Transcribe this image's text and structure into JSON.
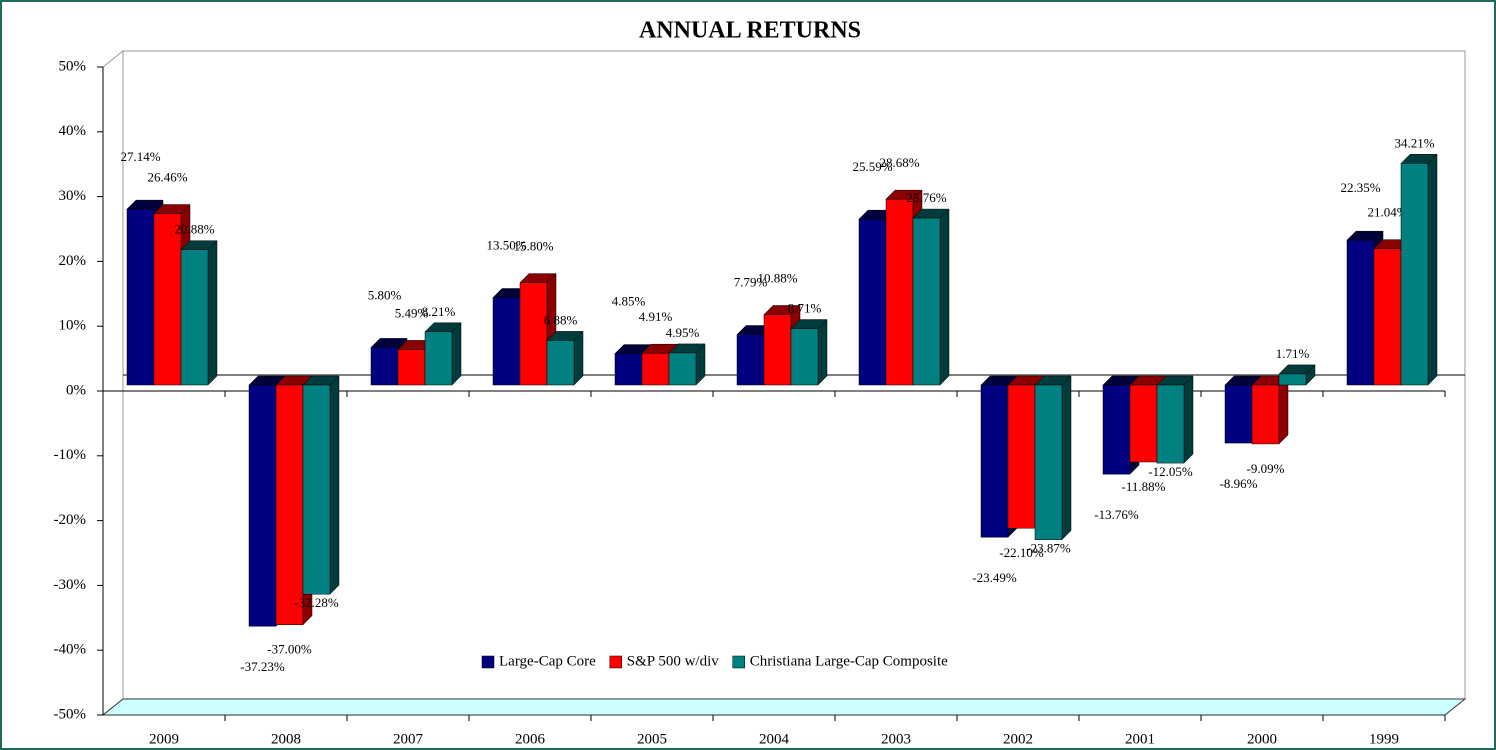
{
  "chart_data": {
    "type": "bar3d",
    "title": "ANNUAL RETURNS",
    "categories": [
      "2009",
      "2008",
      "2007",
      "2006",
      "2005",
      "2004",
      "2003",
      "2002",
      "2001",
      "2000",
      "1999"
    ],
    "series": [
      {
        "name": "Large-Cap Core",
        "color": "#000080",
        "side": "#00003a",
        "values": [
          27.14,
          -37.23,
          5.8,
          13.5,
          4.85,
          7.79,
          25.59,
          -23.49,
          -13.76,
          -8.96,
          22.35
        ],
        "value_labels": [
          "27.14%",
          "-37.23%",
          "5.80%",
          "13.50%",
          "4.85%",
          "7.79%",
          "25.59%",
          "-23.49%",
          "-13.76%",
          "-8.96%",
          "22.35%"
        ]
      },
      {
        "name": "S&P 500 w/div",
        "color": "#ff0000",
        "side": "#8b0000",
        "values": [
          26.46,
          -37.0,
          5.49,
          15.8,
          4.91,
          10.88,
          28.68,
          -22.1,
          -11.88,
          -9.09,
          21.04
        ],
        "value_labels": [
          "26.46%",
          "-37.00%",
          "5.49%",
          "15.80%",
          "4.91%",
          "10.88%",
          "28.68%",
          "-22.10%",
          "-11.88%",
          "-9.09%",
          "21.04%"
        ]
      },
      {
        "name": "Christiana Large-Cap Composite",
        "color": "#008080",
        "side": "#003c3c",
        "values": [
          20.88,
          -32.28,
          8.21,
          6.88,
          4.95,
          8.71,
          25.76,
          -23.87,
          -12.05,
          1.71,
          34.21
        ],
        "value_labels": [
          "20.88%",
          "-32.28%",
          "8.21%",
          "6.88%",
          "4.95%",
          "8.71%",
          "25.76%",
          "-23.87%",
          "-12.05%",
          "1.71%",
          "34.21%"
        ]
      }
    ],
    "ylim": [
      -50,
      50
    ],
    "yticks": [
      {
        "value": -50,
        "label": "-50%"
      },
      {
        "value": -40,
        "label": "-40%"
      },
      {
        "value": -30,
        "label": "-30%"
      },
      {
        "value": -20,
        "label": "-20%"
      },
      {
        "value": -10,
        "label": "-10%"
      },
      {
        "value": 0,
        "label": "0%"
      },
      {
        "value": 10,
        "label": "10%"
      },
      {
        "value": 20,
        "label": "20%"
      },
      {
        "value": 30,
        "label": "30%"
      },
      {
        "value": 40,
        "label": "40%"
      },
      {
        "value": 50,
        "label": "50%"
      }
    ],
    "legend": "bottom",
    "floor_color": "#ccffff"
  }
}
